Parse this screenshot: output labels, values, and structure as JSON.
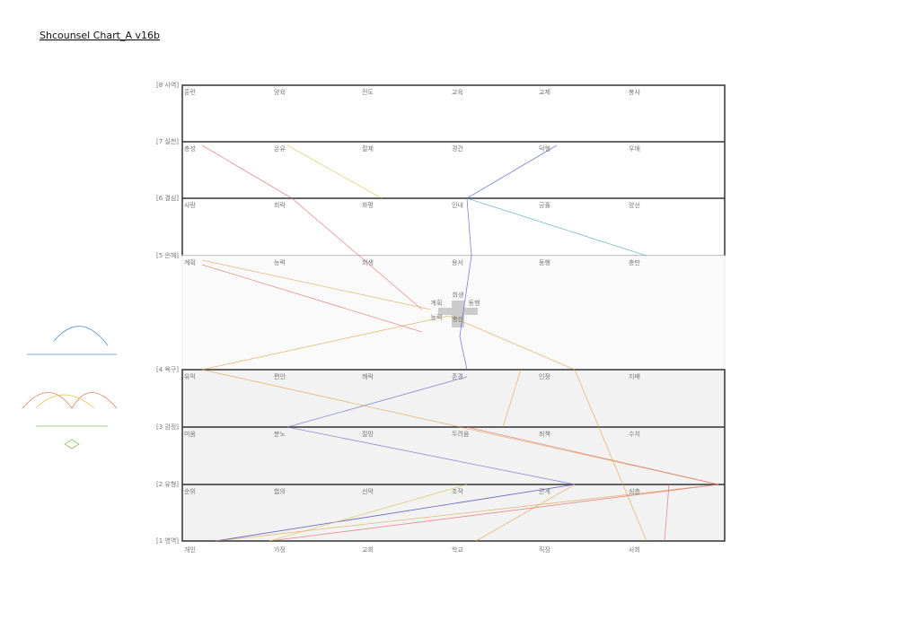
{
  "title": "Shcounsel Chart_A v16b",
  "rows": [
    {
      "label": "[8 사역]",
      "words": [
        "훈련",
        "양육",
        "전도",
        "교육",
        "교제",
        "봉사"
      ]
    },
    {
      "label": "[7 실천]",
      "words": [
        "충성",
        "온유",
        "절제",
        "경건",
        "덕행",
        "우애"
      ]
    },
    {
      "label": "[6 결심]",
      "words": [
        "사랑",
        "희락",
        "화평",
        "인내",
        "긍휼",
        "양선"
      ]
    },
    {
      "label": "[5 은혜]",
      "words": [
        "계획",
        "능력",
        "희생",
        "용서",
        "동행",
        "충만"
      ]
    },
    {
      "label": "[4 욕구]",
      "words": [
        "유익",
        "편안",
        "쾌락",
        "존경",
        "인정",
        "지배"
      ]
    },
    {
      "label": "[3 감정]",
      "words": [
        "미움",
        "분노",
        "절망",
        "두려움",
        "죄책",
        "수치"
      ]
    },
    {
      "label": "[2 유형]",
      "words": [
        "순위",
        "합의",
        "선악",
        "조작",
        "관계",
        "심층"
      ]
    },
    {
      "label": "[1 영역]",
      "words": [
        "개인",
        "가정",
        "교회",
        "학교",
        "직장",
        "사회"
      ]
    }
  ],
  "center": [
    "희생",
    "계획",
    "동행",
    "능력",
    "충만"
  ]
}
